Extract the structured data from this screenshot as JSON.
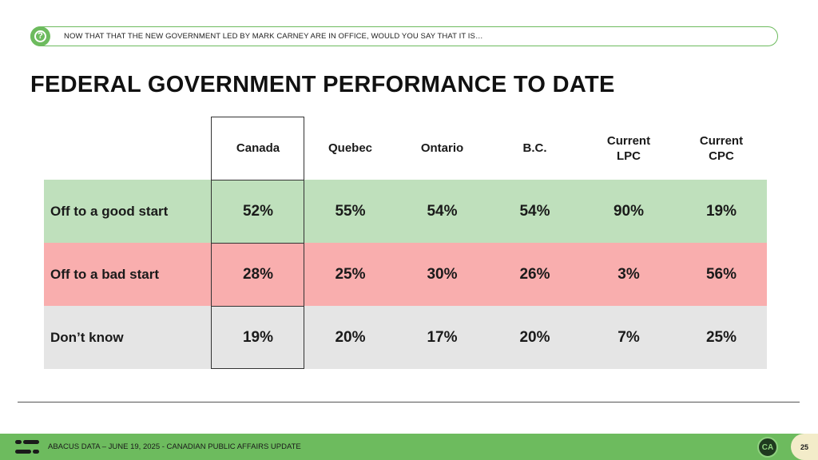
{
  "question": {
    "icon": "question-icon",
    "text": "NOW THAT THAT THE NEW GOVERNMENT LED BY MARK CARNEY ARE IN OFFICE, WOULD YOU SAY THAT IT IS…"
  },
  "title": "FEDERAL GOVERNMENT PERFORMANCE TO DATE",
  "table": {
    "columns": [
      "Canada",
      "Quebec",
      "Ontario",
      "B.C.",
      "Current\nLPC",
      "Current\nCPC"
    ],
    "rows": [
      {
        "label": "Off to a good start",
        "values": [
          "52%",
          "55%",
          "54%",
          "54%",
          "90%",
          "19%"
        ],
        "color": "#bfe0bc"
      },
      {
        "label": "Off to a bad start",
        "values": [
          "28%",
          "25%",
          "30%",
          "26%",
          "3%",
          "56%"
        ],
        "color": "#f9aeae"
      },
      {
        "label": "Don’t know",
        "values": [
          "19%",
          "20%",
          "17%",
          "20%",
          "7%",
          "25%"
        ],
        "color": "#e5e5e5"
      }
    ],
    "highlighted_column": "Canada"
  },
  "footer": {
    "logo_icon": "abacus-logo-icon",
    "source": "ABACUS DATA – JUNE 19, 2025 - CANADIAN PUBLIC AFFAIRS UPDATE",
    "badge_text": "CA",
    "page_number": "25"
  },
  "colors": {
    "accent_green": "#6dbb5e",
    "good": "#bfe0bc",
    "bad": "#f9aeae",
    "neutral": "#e5e5e5"
  }
}
